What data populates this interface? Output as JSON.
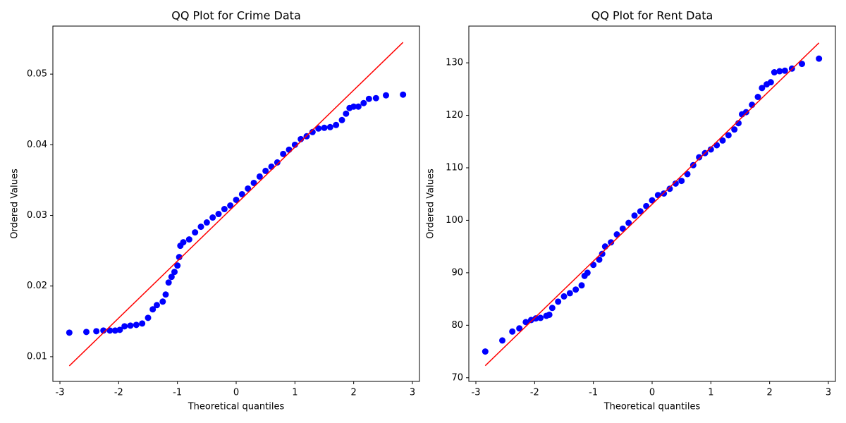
{
  "chart_data": [
    {
      "type": "scatter",
      "title": "QQ Plot for Crime Data",
      "x_label": "Theoretical quantiles",
      "y_label": "Ordered Values",
      "xlim": [
        -3.12,
        3.12
      ],
      "ylim": [
        0.0065,
        0.0568
      ],
      "xticks": [
        -3,
        -2,
        -1,
        0,
        1,
        2,
        3
      ],
      "yticks": [
        0.01,
        0.02,
        0.03,
        0.04,
        0.05
      ],
      "series": [
        {
          "color": "#0000ff",
          "mode": "markers",
          "x": [
            -2.84,
            -2.55,
            -2.38,
            -2.26,
            -2.15,
            -2.06,
            -1.98,
            -1.9,
            -1.8,
            -1.7,
            -1.6,
            -1.5,
            -1.42,
            -1.35,
            -1.25,
            -1.2,
            -1.15,
            -1.1,
            -1.05,
            -1.0,
            -0.97,
            -0.95,
            -0.9,
            -0.8,
            -0.7,
            -0.6,
            -0.5,
            -0.4,
            -0.3,
            -0.2,
            -0.1,
            0.0,
            0.1,
            0.2,
            0.3,
            0.4,
            0.5,
            0.6,
            0.7,
            0.8,
            0.9,
            1.0,
            1.1,
            1.2,
            1.3,
            1.4,
            1.5,
            1.6,
            1.7,
            1.8,
            1.87,
            1.93,
            2.0,
            2.08,
            2.17,
            2.26,
            2.38,
            2.55,
            2.84
          ],
          "values": [
            0.0134,
            0.0135,
            0.0136,
            0.0137,
            0.0137,
            0.0137,
            0.0138,
            0.0143,
            0.0144,
            0.0145,
            0.0147,
            0.0155,
            0.0167,
            0.0173,
            0.0178,
            0.0188,
            0.0205,
            0.0213,
            0.022,
            0.0229,
            0.0241,
            0.0257,
            0.0262,
            0.0266,
            0.0276,
            0.0284,
            0.029,
            0.0297,
            0.0302,
            0.0309,
            0.0314,
            0.0322,
            0.033,
            0.0338,
            0.0346,
            0.0355,
            0.0363,
            0.0369,
            0.0375,
            0.0387,
            0.0393,
            0.04,
            0.0408,
            0.0412,
            0.0418,
            0.0423,
            0.0424,
            0.0425,
            0.0428,
            0.0435,
            0.0444,
            0.0452,
            0.0454,
            0.0454,
            0.0459,
            0.0465,
            0.0466,
            0.047,
            0.0471
          ]
        },
        {
          "color": "#ff0000",
          "mode": "line",
          "x": [
            -2.84,
            2.84
          ],
          "values": [
            0.0087,
            0.0545
          ]
        }
      ]
    },
    {
      "type": "scatter",
      "title": "QQ Plot for Rent Data",
      "x_label": "Theoretical quantiles",
      "y_label": "Ordered Values",
      "xlim": [
        -3.12,
        3.12
      ],
      "ylim": [
        69.3,
        137.0
      ],
      "xticks": [
        -3,
        -2,
        -1,
        0,
        1,
        2,
        3
      ],
      "yticks": [
        70,
        80,
        90,
        100,
        110,
        120,
        130
      ],
      "series": [
        {
          "color": "#0000ff",
          "mode": "markers",
          "x": [
            -2.84,
            -2.55,
            -2.38,
            -2.26,
            -2.15,
            -2.06,
            -1.98,
            -1.9,
            -1.8,
            -1.75,
            -1.7,
            -1.6,
            -1.5,
            -1.4,
            -1.3,
            -1.2,
            -1.15,
            -1.1,
            -1.0,
            -0.9,
            -0.85,
            -0.8,
            -0.7,
            -0.6,
            -0.5,
            -0.4,
            -0.3,
            -0.2,
            -0.1,
            0.0,
            0.1,
            0.2,
            0.3,
            0.4,
            0.5,
            0.6,
            0.7,
            0.8,
            0.9,
            1.0,
            1.1,
            1.2,
            1.3,
            1.4,
            1.47,
            1.53,
            1.6,
            1.7,
            1.8,
            1.87,
            1.95,
            2.02,
            2.08,
            2.17,
            2.26,
            2.38,
            2.55,
            2.84
          ],
          "values": [
            75.0,
            77.1,
            78.8,
            79.4,
            80.6,
            81.0,
            81.3,
            81.4,
            81.8,
            82.0,
            83.3,
            84.5,
            85.5,
            86.1,
            86.8,
            87.6,
            89.4,
            90.0,
            91.5,
            92.5,
            93.6,
            95.0,
            95.8,
            97.3,
            98.4,
            99.5,
            100.9,
            101.7,
            102.7,
            103.8,
            104.8,
            105.1,
            106.0,
            107.0,
            107.5,
            108.8,
            110.5,
            112.0,
            112.8,
            113.5,
            114.3,
            115.2,
            116.2,
            117.3,
            118.5,
            120.2,
            120.6,
            122.0,
            123.5,
            125.2,
            125.9,
            126.3,
            128.2,
            128.4,
            128.5,
            128.9,
            129.8,
            130.8
          ]
        },
        {
          "color": "#ff0000",
          "mode": "line",
          "x": [
            -2.84,
            2.84
          ],
          "values": [
            72.3,
            133.8
          ]
        }
      ]
    }
  ]
}
